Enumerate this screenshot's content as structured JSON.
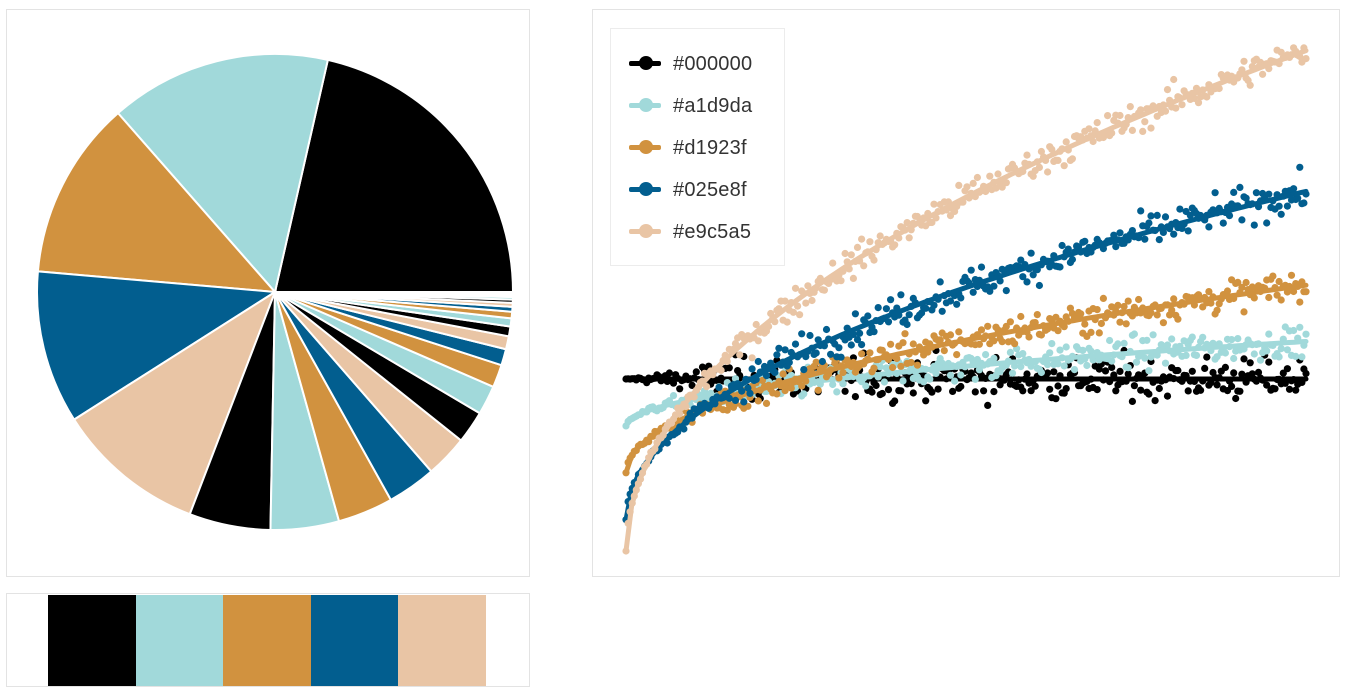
{
  "palette": [
    "#000000",
    "#a1d9da",
    "#d1923f",
    "#025e8f",
    "#e9c5a5"
  ],
  "chart_data": [
    {
      "type": "pie",
      "title": "",
      "slice_colors_cycle": [
        "#000000",
        "#a1d9da",
        "#d1923f",
        "#025e8f",
        "#e9c5a5"
      ],
      "values": [
        97,
        68,
        55,
        47,
        46,
        25,
        21,
        17,
        15,
        13,
        10,
        9,
        7,
        5,
        4,
        3,
        2.5,
        2,
        1.5,
        1.2,
        1,
        0.8,
        0.6,
        0.5,
        0.4
      ],
      "start_angle_deg": 0,
      "direction": "counterclockwise"
    },
    {
      "type": "scatter",
      "title": "",
      "xlabel": "",
      "ylabel": "",
      "grid": false,
      "legend_position": "top-left",
      "x_range": [
        0,
        1
      ],
      "y_range": [
        -0.55,
        1.1
      ],
      "series": [
        {
          "name": "#000000",
          "color": "#000000",
          "trend": "flat",
          "start": 0.0,
          "end": 0.0,
          "noise": 0.07
        },
        {
          "name": "#a1d9da",
          "color": "#a1d9da",
          "trend": "sqrt",
          "start": -0.15,
          "end": 0.12,
          "noise": 0.05
        },
        {
          "name": "#d1923f",
          "color": "#d1923f",
          "trend": "sqrt",
          "start": -0.3,
          "end": 0.3,
          "noise": 0.05
        },
        {
          "name": "#025e8f",
          "color": "#025e8f",
          "trend": "sqrt",
          "start": -0.45,
          "end": 0.6,
          "noise": 0.055
        },
        {
          "name": "#e9c5a5",
          "color": "#e9c5a5",
          "trend": "sqrt",
          "start": -0.55,
          "end": 1.05,
          "noise": 0.05
        }
      ]
    }
  ]
}
